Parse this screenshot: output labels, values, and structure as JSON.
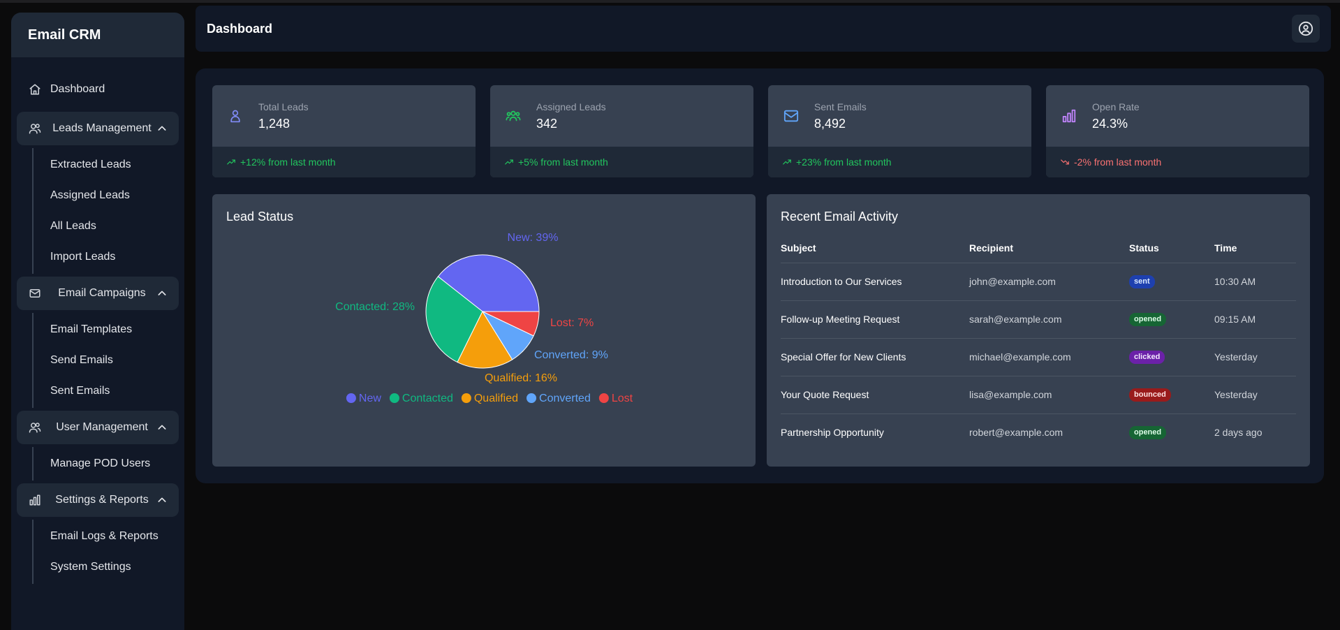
{
  "app": {
    "title": "Email CRM"
  },
  "sidebar": {
    "dashboard": {
      "label": "Dashboard",
      "icon": "home-icon"
    },
    "groups": [
      {
        "label": "Leads Management",
        "icon": "users-icon",
        "items": [
          "Extracted Leads",
          "Assigned Leads",
          "All Leads",
          "Import Leads"
        ]
      },
      {
        "label": "Email Campaigns",
        "icon": "mail-icon",
        "items": [
          "Email Templates",
          "Send Emails",
          "Sent Emails"
        ]
      },
      {
        "label": "User Management",
        "icon": "users-icon",
        "items": [
          "Manage POD Users"
        ]
      },
      {
        "label": "Settings & Reports",
        "icon": "bar-chart-icon",
        "items": [
          "Email Logs & Reports",
          "System Settings"
        ]
      }
    ]
  },
  "header": {
    "title": "Dashboard",
    "profile_icon": "user-circle-icon"
  },
  "stats": [
    {
      "label": "Total Leads",
      "value": "1,248",
      "change": "+12% from last month",
      "trend": "up",
      "icon": "user-icon",
      "color": "#818cf8"
    },
    {
      "label": "Assigned Leads",
      "value": "342",
      "change": "+5% from last month",
      "trend": "up",
      "icon": "team-icon",
      "color": "#22c55e"
    },
    {
      "label": "Sent Emails",
      "value": "8,492",
      "change": "+23% from last month",
      "trend": "up",
      "icon": "mail-icon",
      "color": "#60a5fa"
    },
    {
      "label": "Open Rate",
      "value": "24.3%",
      "change": "-2% from last month",
      "trend": "down",
      "icon": "bar-chart-icon",
      "color": "#c084fc"
    }
  ],
  "lead_status": {
    "title": "Lead Status",
    "chart_data": {
      "type": "pie",
      "slices": [
        {
          "name": "New",
          "value": 39,
          "label": "New: 39%",
          "color": "#6366f1"
        },
        {
          "name": "Contacted",
          "value": 28,
          "label": "Contacted: 28%",
          "color": "#10b981"
        },
        {
          "name": "Qualified",
          "value": 16,
          "label": "Qualified: 16%",
          "color": "#f59e0b"
        },
        {
          "name": "Converted",
          "value": 9,
          "label": "Converted: 9%",
          "color": "#60a5fa"
        },
        {
          "name": "Lost",
          "value": 7,
          "label": "Lost: 7%",
          "color": "#ef4444"
        }
      ],
      "legend_position": "bottom"
    }
  },
  "recent_activity": {
    "title": "Recent Email Activity",
    "columns": [
      "Subject",
      "Recipient",
      "Status",
      "Time"
    ],
    "rows": [
      {
        "subject": "Introduction to Our Services",
        "recipient": "john@example.com",
        "status": "sent",
        "time": "10:30 AM"
      },
      {
        "subject": "Follow-up Meeting Request",
        "recipient": "sarah@example.com",
        "status": "opened",
        "time": "09:15 AM"
      },
      {
        "subject": "Special Offer for New Clients",
        "recipient": "michael@example.com",
        "status": "clicked",
        "time": "Yesterday"
      },
      {
        "subject": "Your Quote Request",
        "recipient": "lisa@example.com",
        "status": "bounced",
        "time": "Yesterday"
      },
      {
        "subject": "Partnership Opportunity",
        "recipient": "robert@example.com",
        "status": "opened",
        "time": "2 days ago"
      }
    ],
    "status_colors": {
      "sent": {
        "bg": "#1e40af",
        "fg": "#dbeafe"
      },
      "opened": {
        "bg": "#166534",
        "fg": "#dcfce7"
      },
      "clicked": {
        "bg": "#6b21a8",
        "fg": "#f3e8ff"
      },
      "bounced": {
        "bg": "#991b1b",
        "fg": "#fee2e2"
      }
    }
  }
}
